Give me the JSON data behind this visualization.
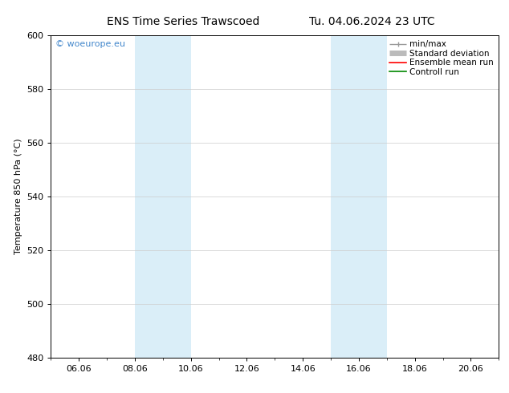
{
  "title_left": "ENS Time Series Trawscoed",
  "title_right": "Tu. 04.06.2024 23 UTC",
  "ylabel": "Temperature 850 hPa (°C)",
  "ylim": [
    480,
    600
  ],
  "yticks": [
    480,
    500,
    520,
    540,
    560,
    580,
    600
  ],
  "xtick_labels": [
    "06.06",
    "08.06",
    "10.06",
    "12.06",
    "14.06",
    "16.06",
    "18.06",
    "20.06"
  ],
  "xtick_positions": [
    1,
    3,
    5,
    7,
    9,
    11,
    13,
    15
  ],
  "xlim": [
    0,
    16
  ],
  "background_color": "#ffffff",
  "plot_bg_color": "#ffffff",
  "band1_x_start": 3,
  "band1_x_end": 5,
  "band2_x_start": 10,
  "band2_x_end": 12,
  "band_color": "#daeef8",
  "watermark_text": "© woeurope.eu",
  "watermark_color": "#4488cc",
  "legend_items": [
    "min/max",
    "Standard deviation",
    "Ensemble mean run",
    "Controll run"
  ],
  "legend_colors_line": [
    "#999999",
    "#bbbbbb",
    "#ff0000",
    "#008800"
  ],
  "grid_color": "#cccccc",
  "title_fontsize": 10,
  "ylabel_fontsize": 8,
  "tick_fontsize": 8,
  "legend_fontsize": 7.5
}
